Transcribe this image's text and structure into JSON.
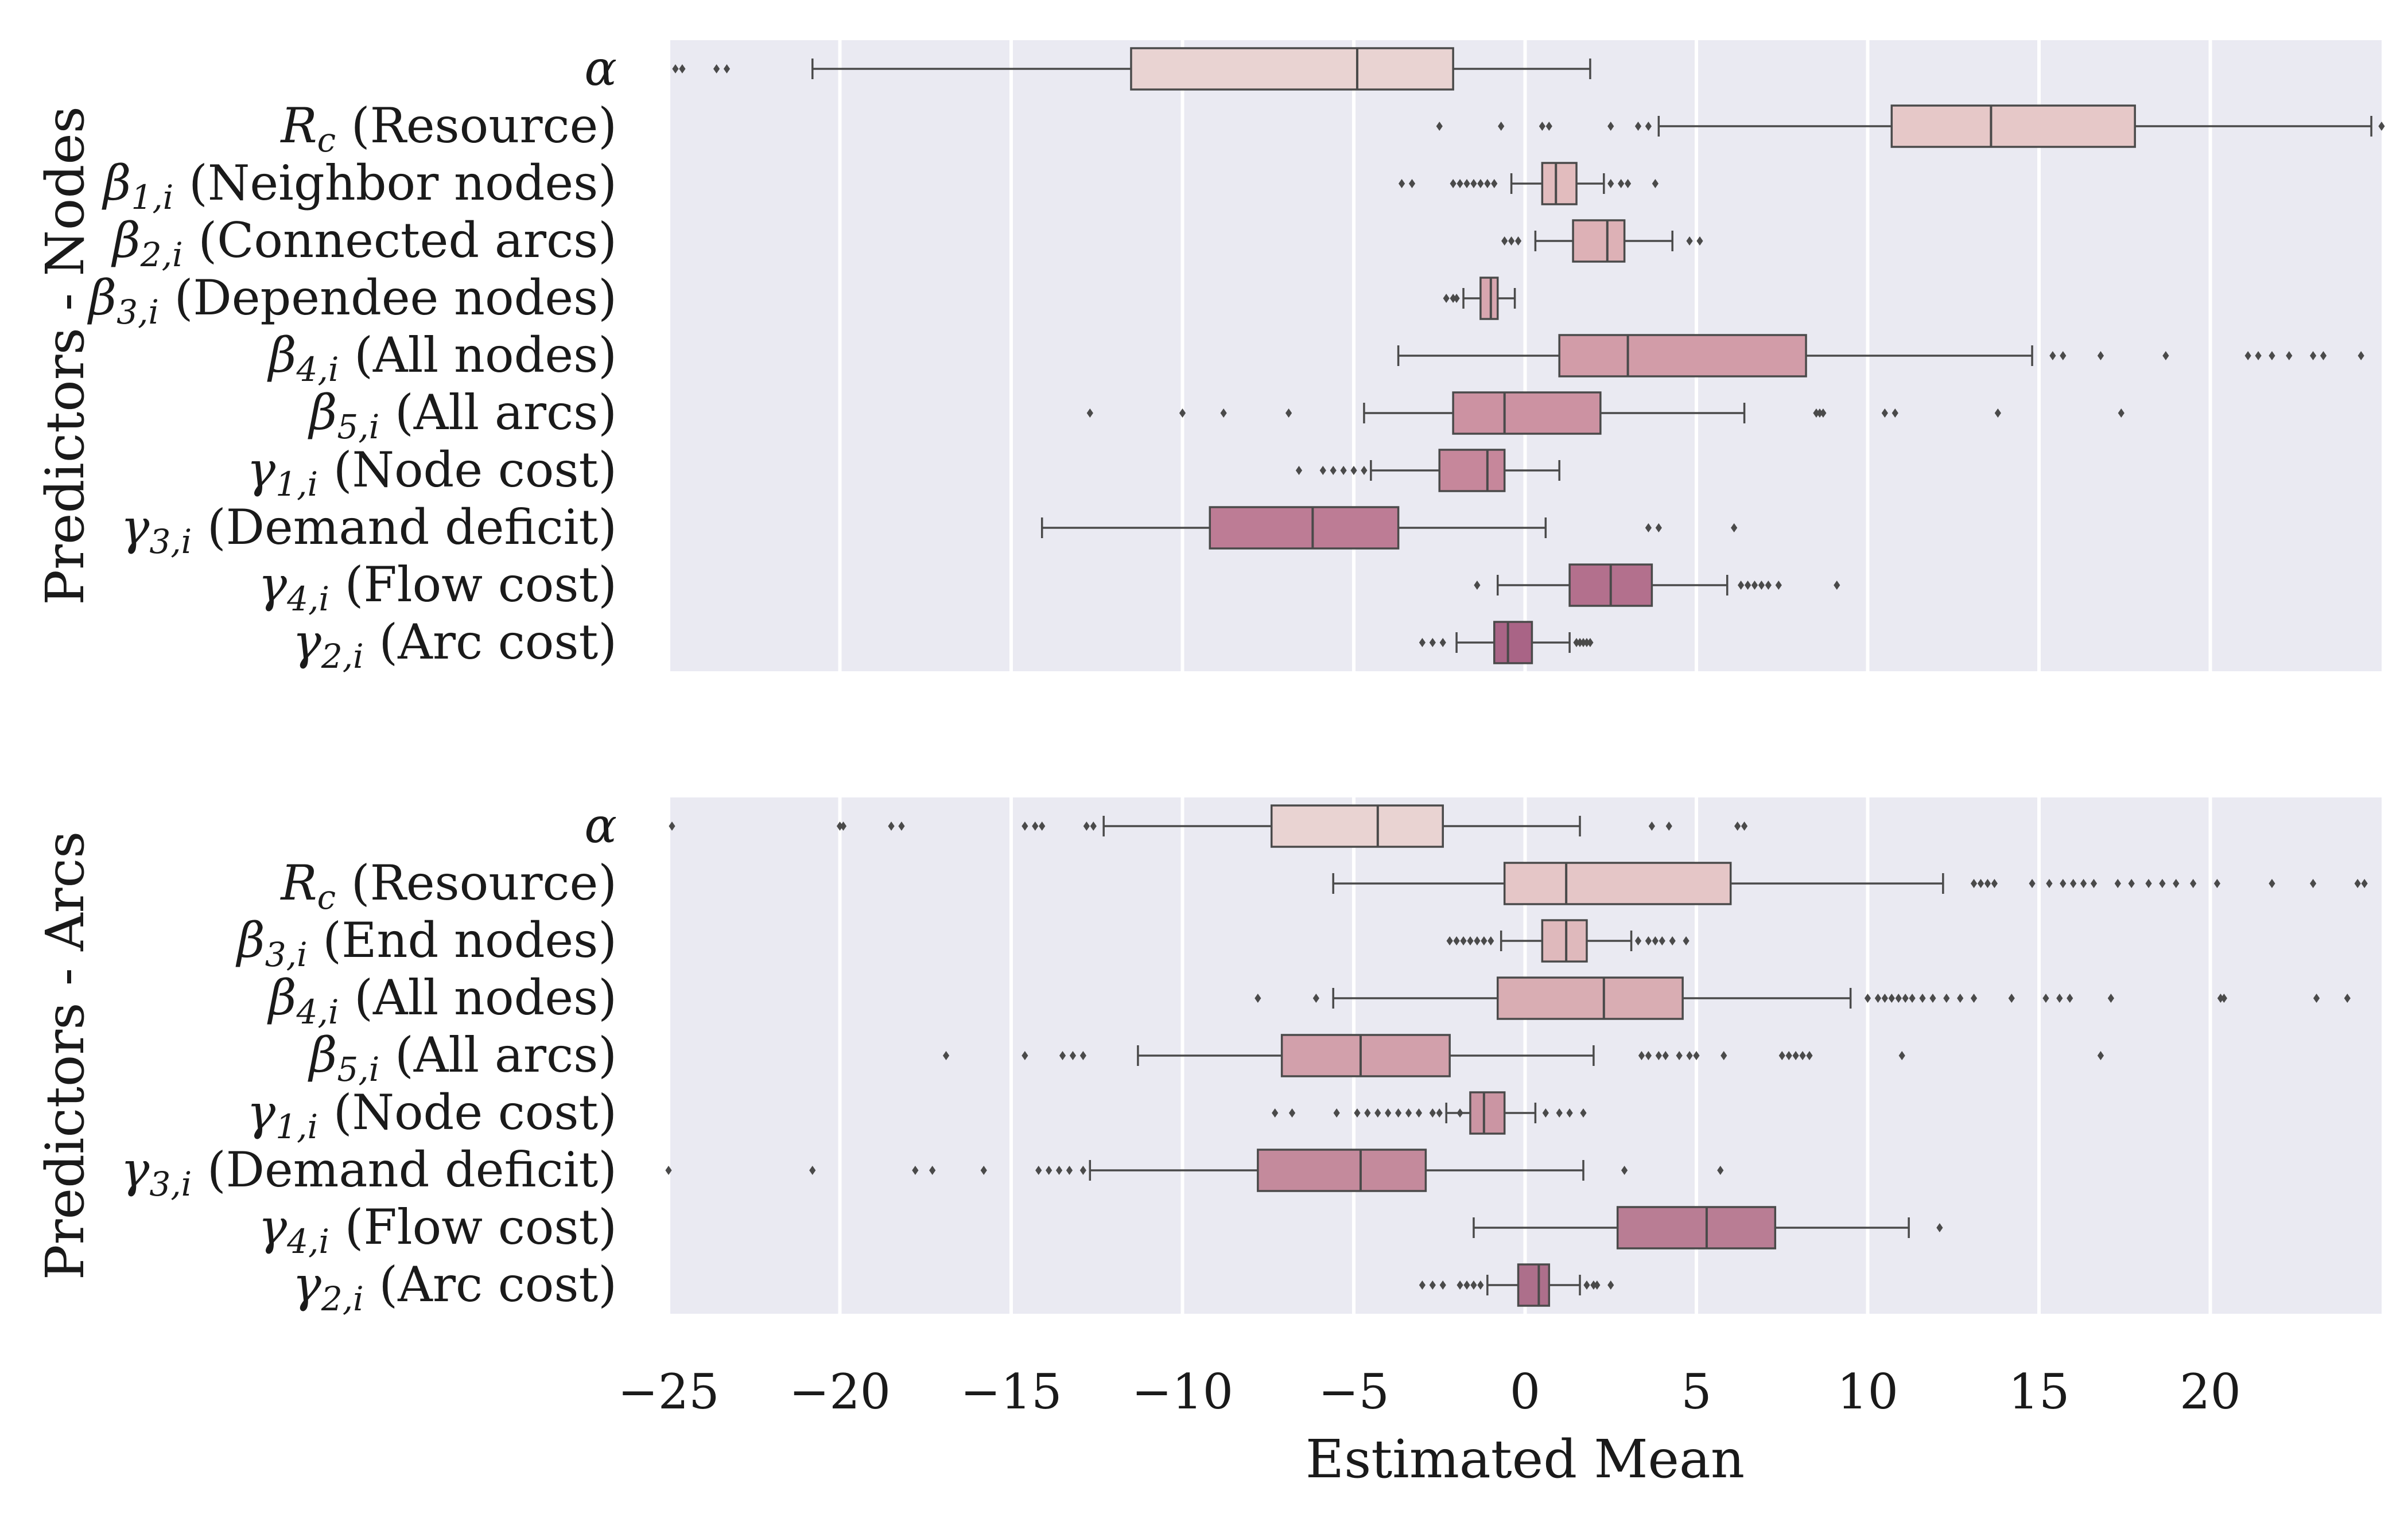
{
  "chart_data": [
    {
      "type": "boxplot",
      "ylabel": "Predictors - Nodes",
      "xlim": [
        -25,
        25
      ],
      "xticks": [
        -25,
        -20,
        -15,
        -10,
        -5,
        0,
        5,
        10,
        15,
        20
      ],
      "xtick_labels": [
        "−25",
        "−20",
        "−15",
        "−10",
        "−5",
        "0",
        "5",
        "10",
        "15",
        "20"
      ],
      "grid": true,
      "series": [
        {
          "sym": "α",
          "sub": "",
          "text": "",
          "color": "#e9d3d2",
          "q1": -11.5,
          "median": -4.9,
          "q3": -2.1,
          "whislo": -20.8,
          "whishi": 1.9,
          "fliers": [
            -24.8,
            -24.6,
            -23.6,
            -23.3
          ]
        },
        {
          "sym": "R",
          "sub": "c",
          "text": "(Resource)",
          "color": "#e6c8c8",
          "q1": 10.7,
          "median": 13.6,
          "q3": 17.8,
          "whislo": 3.9,
          "whishi": 24.7,
          "fliers": [
            -2.5,
            -0.7,
            0.5,
            0.7,
            2.5,
            3.3,
            3.6,
            25.0
          ]
        },
        {
          "sym": "β",
          "sub": "1,i",
          "text": "(Neighbor nodes)",
          "color": "#e2bcbe",
          "q1": 0.5,
          "median": 0.9,
          "q3": 1.5,
          "whislo": -0.4,
          "whishi": 2.3,
          "fliers": [
            -3.6,
            -3.3,
            -2.1,
            -1.9,
            -1.7,
            -1.5,
            -1.3,
            -1.1,
            -0.9,
            2.5,
            2.8,
            3.0,
            3.8
          ]
        },
        {
          "sym": "β",
          "sub": "2,i",
          "text": "(Connected arcs)",
          "color": "#ddb1b6",
          "q1": 1.4,
          "median": 2.4,
          "q3": 2.9,
          "whislo": 0.3,
          "whishi": 4.3,
          "fliers": [
            -0.6,
            -0.4,
            -0.2,
            4.8,
            5.1
          ]
        },
        {
          "sym": "β",
          "sub": "3,i",
          "text": "(Dependee nodes)",
          "color": "#d8a6af",
          "q1": -1.3,
          "median": -1.0,
          "q3": -0.8,
          "whislo": -1.8,
          "whishi": -0.3,
          "fliers": [
            -2.3,
            -2.1,
            -2.0
          ]
        },
        {
          "sym": "β",
          "sub": "4,i",
          "text": "(All nodes)",
          "color": "#d29ca8",
          "q1": 1.0,
          "median": 3.0,
          "q3": 8.2,
          "whislo": -3.7,
          "whishi": 14.8,
          "fliers": [
            15.4,
            15.7,
            16.8,
            18.7,
            21.1,
            21.4,
            21.8,
            22.3,
            23.0,
            23.3,
            24.4
          ]
        },
        {
          "sym": "β",
          "sub": "5,i",
          "text": "(All arcs)",
          "color": "#cc92a2",
          "q1": -2.1,
          "median": -0.6,
          "q3": 2.2,
          "whislo": -4.7,
          "whishi": 6.4,
          "fliers": [
            -12.7,
            -10.0,
            -8.8,
            -6.9,
            8.5,
            8.6,
            8.7,
            10.5,
            10.8,
            13.8,
            17.4
          ]
        },
        {
          "sym": "γ",
          "sub": "1,i",
          "text": "(Node cost)",
          "color": "#c6879b",
          "q1": -2.5,
          "median": -1.1,
          "q3": -0.6,
          "whislo": -4.5,
          "whishi": 1.0,
          "fliers": [
            -6.6,
            -5.9,
            -5.6,
            -5.3,
            -5.0,
            -4.7
          ]
        },
        {
          "sym": "γ",
          "sub": "3,i",
          "text": "(Demand deficit)",
          "color": "#bd7c95",
          "q1": -9.2,
          "median": -6.2,
          "q3": -3.7,
          "whislo": -14.1,
          "whishi": 0.6,
          "fliers": [
            3.6,
            3.9,
            6.1
          ]
        },
        {
          "sym": "γ",
          "sub": "4,i",
          "text": "(Flow cost)",
          "color": "#b3708d",
          "q1": 1.3,
          "median": 2.5,
          "q3": 3.7,
          "whislo": -0.8,
          "whishi": 5.9,
          "fliers": [
            -1.4,
            6.3,
            6.5,
            6.7,
            6.9,
            7.1,
            7.4,
            9.1
          ]
        },
        {
          "sym": "γ",
          "sub": "2,i",
          "text": "(Arc cost)",
          "color": "#a96486",
          "q1": -0.9,
          "median": -0.5,
          "q3": 0.2,
          "whislo": -2.0,
          "whishi": 1.3,
          "fliers": [
            -3.0,
            -2.7,
            -2.4,
            1.5,
            1.6,
            1.7,
            1.8,
            1.9
          ]
        }
      ]
    },
    {
      "type": "boxplot",
      "ylabel": "Predictors - Arcs",
      "xlim": [
        -25,
        25
      ],
      "xticks": [
        -25,
        -20,
        -15,
        -10,
        -5,
        0,
        5,
        10,
        15,
        20
      ],
      "xtick_labels": [
        "−25",
        "−20",
        "−15",
        "−10",
        "−5",
        "0",
        "5",
        "10",
        "15",
        "20"
      ],
      "xlabel": "Estimated Mean",
      "grid": true,
      "series": [
        {
          "sym": "α",
          "sub": "",
          "text": "",
          "color": "#e9d3d2",
          "q1": -7.4,
          "median": -4.3,
          "q3": -2.4,
          "whislo": -12.3,
          "whishi": 1.6,
          "fliers": [
            -24.9,
            -20.0,
            -19.9,
            -18.5,
            -18.2,
            -14.6,
            -14.3,
            -14.1,
            -12.8,
            -12.6,
            3.7,
            4.2,
            6.2,
            6.4
          ]
        },
        {
          "sym": "R",
          "sub": "c",
          "text": "(Resource)",
          "color": "#e5c6c7",
          "q1": -0.6,
          "median": 1.2,
          "q3": 6.0,
          "whislo": -5.6,
          "whishi": 12.2,
          "fliers": [
            13.1,
            13.3,
            13.5,
            13.7,
            14.8,
            15.3,
            15.7,
            16.0,
            16.3,
            16.6,
            17.3,
            17.7,
            18.2,
            18.6,
            19.0,
            19.5,
            20.2,
            21.8,
            23.0,
            24.3,
            24.5
          ]
        },
        {
          "sym": "β",
          "sub": "3,i",
          "text": "(End nodes)",
          "color": "#dfb9bc",
          "q1": 0.5,
          "median": 1.2,
          "q3": 1.8,
          "whislo": -0.7,
          "whishi": 3.1,
          "fliers": [
            -2.2,
            -2.0,
            -1.8,
            -1.6,
            -1.4,
            -1.2,
            -1.0,
            3.3,
            3.6,
            3.8,
            4.0,
            4.3,
            4.7
          ]
        },
        {
          "sym": "β",
          "sub": "4,i",
          "text": "(All nodes)",
          "color": "#d9adb3",
          "q1": -0.8,
          "median": 2.3,
          "q3": 4.6,
          "whislo": -5.6,
          "whishi": 9.5,
          "fliers": [
            -7.8,
            -6.1,
            10.0,
            10.3,
            10.5,
            10.7,
            10.9,
            11.1,
            11.3,
            11.6,
            11.9,
            12.3,
            12.7,
            13.1,
            14.2,
            15.2,
            15.6,
            15.9,
            17.1,
            20.3,
            20.4,
            23.1,
            24.0
          ]
        },
        {
          "sym": "β",
          "sub": "5,i",
          "text": "(All arcs)",
          "color": "#d2a0ab",
          "q1": -7.1,
          "median": -4.8,
          "q3": -2.2,
          "whislo": -11.3,
          "whishi": 2.0,
          "fliers": [
            -16.9,
            -14.6,
            -13.5,
            -13.2,
            -12.9,
            3.4,
            3.6,
            3.9,
            4.1,
            4.5,
            4.8,
            5.0,
            5.8,
            7.5,
            7.7,
            7.9,
            8.1,
            8.3,
            11.0,
            16.8
          ]
        },
        {
          "sym": "γ",
          "sub": "1,i",
          "text": "(Node cost)",
          "color": "#cb95a3",
          "q1": -1.6,
          "median": -1.2,
          "q3": -0.6,
          "whislo": -2.3,
          "whishi": 0.3,
          "fliers": [
            -7.3,
            -6.8,
            -5.5,
            -4.9,
            -4.6,
            -4.3,
            -4.0,
            -3.7,
            -3.4,
            -3.1,
            -2.7,
            -2.5,
            -1.9,
            0.6,
            1.0,
            1.3,
            1.7
          ]
        },
        {
          "sym": "γ",
          "sub": "3,i",
          "text": "(Demand deficit)",
          "color": "#c48a9c",
          "q1": -7.8,
          "median": -4.8,
          "q3": -2.9,
          "whislo": -12.7,
          "whishi": 1.7,
          "fliers": [
            -25.0,
            -20.8,
            -17.8,
            -17.3,
            -15.8,
            -14.2,
            -13.9,
            -13.6,
            -13.3,
            -12.9,
            2.9,
            5.7
          ]
        },
        {
          "sym": "γ",
          "sub": "4,i",
          "text": "(Flow cost)",
          "color": "#b97d94",
          "q1": 2.7,
          "median": 5.3,
          "q3": 7.3,
          "whislo": -1.5,
          "whishi": 11.2,
          "fliers": [
            12.1
          ]
        },
        {
          "sym": "γ",
          "sub": "2,i",
          "text": "(Arc cost)",
          "color": "#ad6f8b",
          "q1": -0.2,
          "median": 0.4,
          "q3": 0.7,
          "whislo": -1.1,
          "whishi": 1.6,
          "fliers": [
            -3.0,
            -2.7,
            -2.4,
            -1.9,
            -1.7,
            -1.5,
            -1.3,
            1.8,
            2.0,
            2.1,
            2.5
          ]
        }
      ]
    }
  ]
}
